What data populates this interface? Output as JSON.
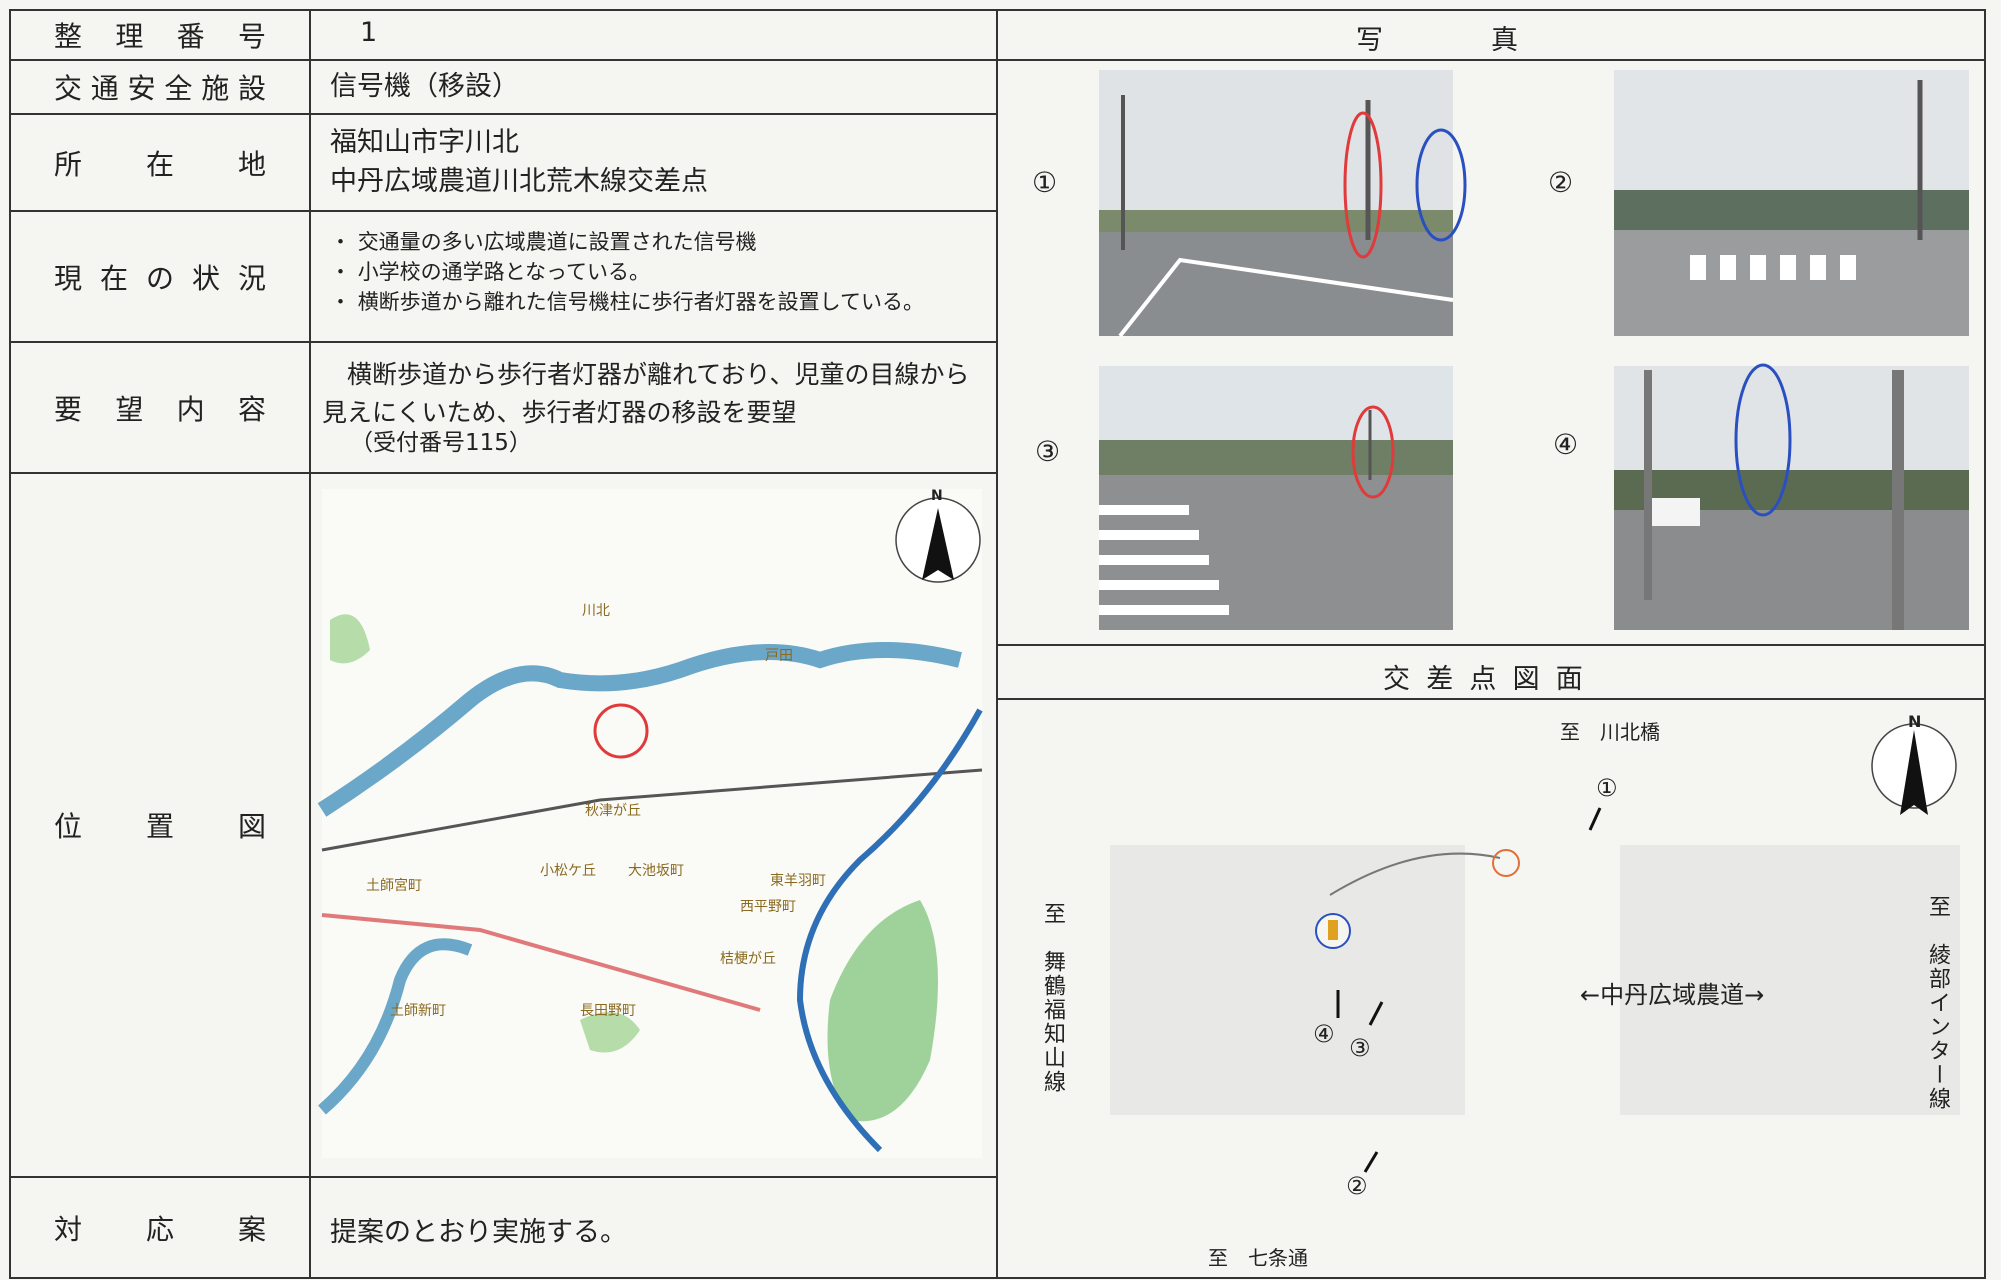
{
  "form": {
    "rows": [
      {
        "label": "整理番号",
        "value": "1"
      },
      {
        "label": "交通安全施設",
        "value": "信号機（移設）"
      },
      {
        "label": "所在地",
        "value": [
          "福知山市字川北",
          "中丹広域農道川北荒木線交差点"
        ]
      },
      {
        "label": "現在の状況",
        "value": [
          "交通量の多い広域農道に設置された信号機",
          "小学校の通学路となっている。",
          "横断歩道から離れた信号機柱に歩行者灯器を設置している。"
        ]
      },
      {
        "label": "要望内容",
        "value": [
          "横断歩道から歩行者灯器が離れており、児童の目線から見えにくいため、歩行者灯器の移設を要望",
          "（受付番号115）"
        ]
      },
      {
        "label": "位置図"
      },
      {
        "label": "対応案",
        "value": "提案のとおり実施する。"
      }
    ]
  },
  "map": {
    "north": "N",
    "labels": [
      "川北",
      "戸田",
      "秋津が丘",
      "土師宮町",
      "土師新町",
      "小松ケ丘",
      "大池坂町",
      "東羊羽町",
      "西平野町",
      "桔梗が丘",
      "長田野町"
    ]
  },
  "photos": {
    "title": "写真",
    "labels": [
      "①",
      "②",
      "③",
      "④"
    ]
  },
  "intersection": {
    "title": "交差点図面",
    "north": "N",
    "to_top": "至　川北橋",
    "to_bottom": "至　七条通",
    "to_left": "至　舞鶴福知山線",
    "to_right": "至　綾部インター線",
    "road": "←中丹広域農道→",
    "markers": [
      "①",
      "②",
      "③",
      "④"
    ]
  }
}
